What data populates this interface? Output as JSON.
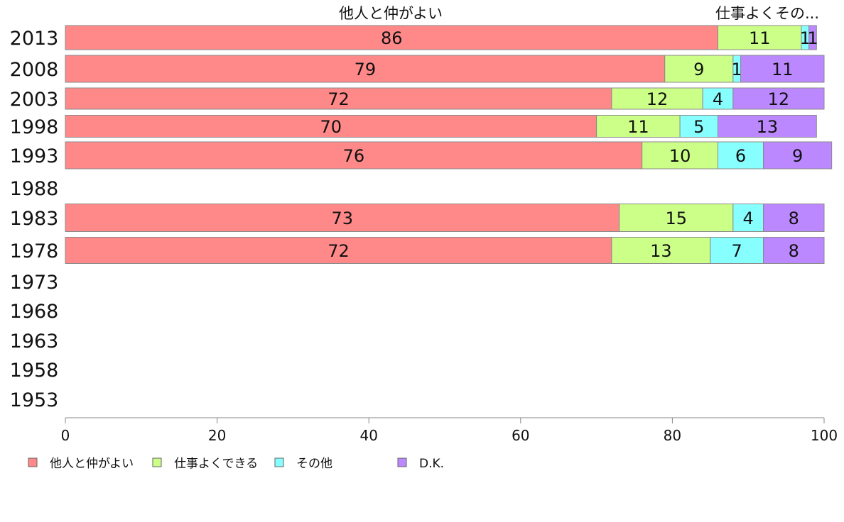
{
  "chart_data": {
    "type": "bar",
    "orientation": "horizontal",
    "stacked": true,
    "categories": [
      "2013",
      "2008",
      "2003",
      "1998",
      "1993",
      "1988",
      "1983",
      "1978",
      "1973",
      "1968",
      "1963",
      "1958",
      "1953"
    ],
    "series": [
      {
        "name": "他人と仲がよい",
        "color": "#ff8888",
        "values": [
          86,
          79,
          72,
          70,
          76,
          null,
          73,
          72,
          null,
          null,
          null,
          null,
          null
        ]
      },
      {
        "name": "仕事よくできる",
        "color": "#ccff88",
        "values": [
          11,
          9,
          12,
          11,
          10,
          null,
          15,
          13,
          null,
          null,
          null,
          null,
          null
        ]
      },
      {
        "name": "その他",
        "color": "#88ffff",
        "values": [
          1,
          1,
          4,
          5,
          6,
          null,
          4,
          7,
          null,
          null,
          null,
          null,
          null
        ]
      },
      {
        "name": "D.K.",
        "color": "#bb88ff",
        "values": [
          1,
          11,
          12,
          13,
          9,
          null,
          8,
          8,
          null,
          null,
          null,
          null,
          null
        ]
      }
    ],
    "xlim": [
      0,
      100
    ],
    "xticks": [
      "0",
      "20",
      "40",
      "60",
      "80",
      "100"
    ],
    "top_labels": [
      "他人と仲がよい",
      "仕事よくその..."
    ],
    "legend_position": "bottom-left",
    "grid": false
  }
}
